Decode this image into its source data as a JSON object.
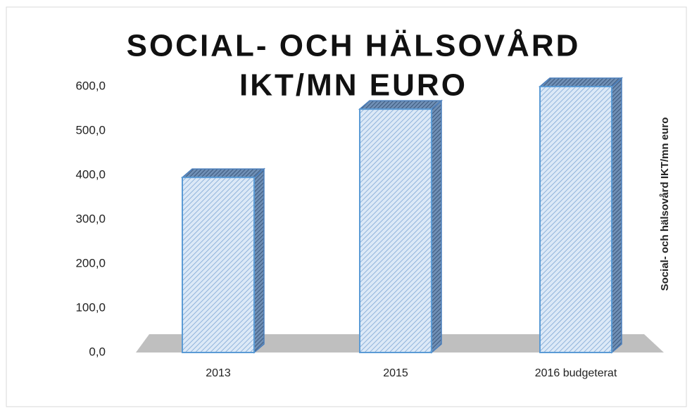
{
  "chart_data": {
    "type": "bar3d",
    "title": [
      "SOCIAL- OCH HÄLSOVÅRD",
      "IKT/MN EURO"
    ],
    "y_label": "Social- och hälsovård IKT/mn euro",
    "categories": [
      "2013",
      "2015",
      "2016 budgeterat"
    ],
    "values": [
      395,
      549,
      600
    ],
    "color": "#9dc3e6",
    "ylim": [
      0,
      600
    ],
    "yticks": [
      {
        "value": 0,
        "label": "0,0"
      },
      {
        "value": 100,
        "label": "100,0"
      },
      {
        "value": 200,
        "label": "200,0"
      },
      {
        "value": 300,
        "label": "300,0"
      },
      {
        "value": 400,
        "label": "400,0"
      },
      {
        "value": 500,
        "label": "500,0"
      },
      {
        "value": 600,
        "label": "600,0"
      }
    ],
    "grid": false
  }
}
